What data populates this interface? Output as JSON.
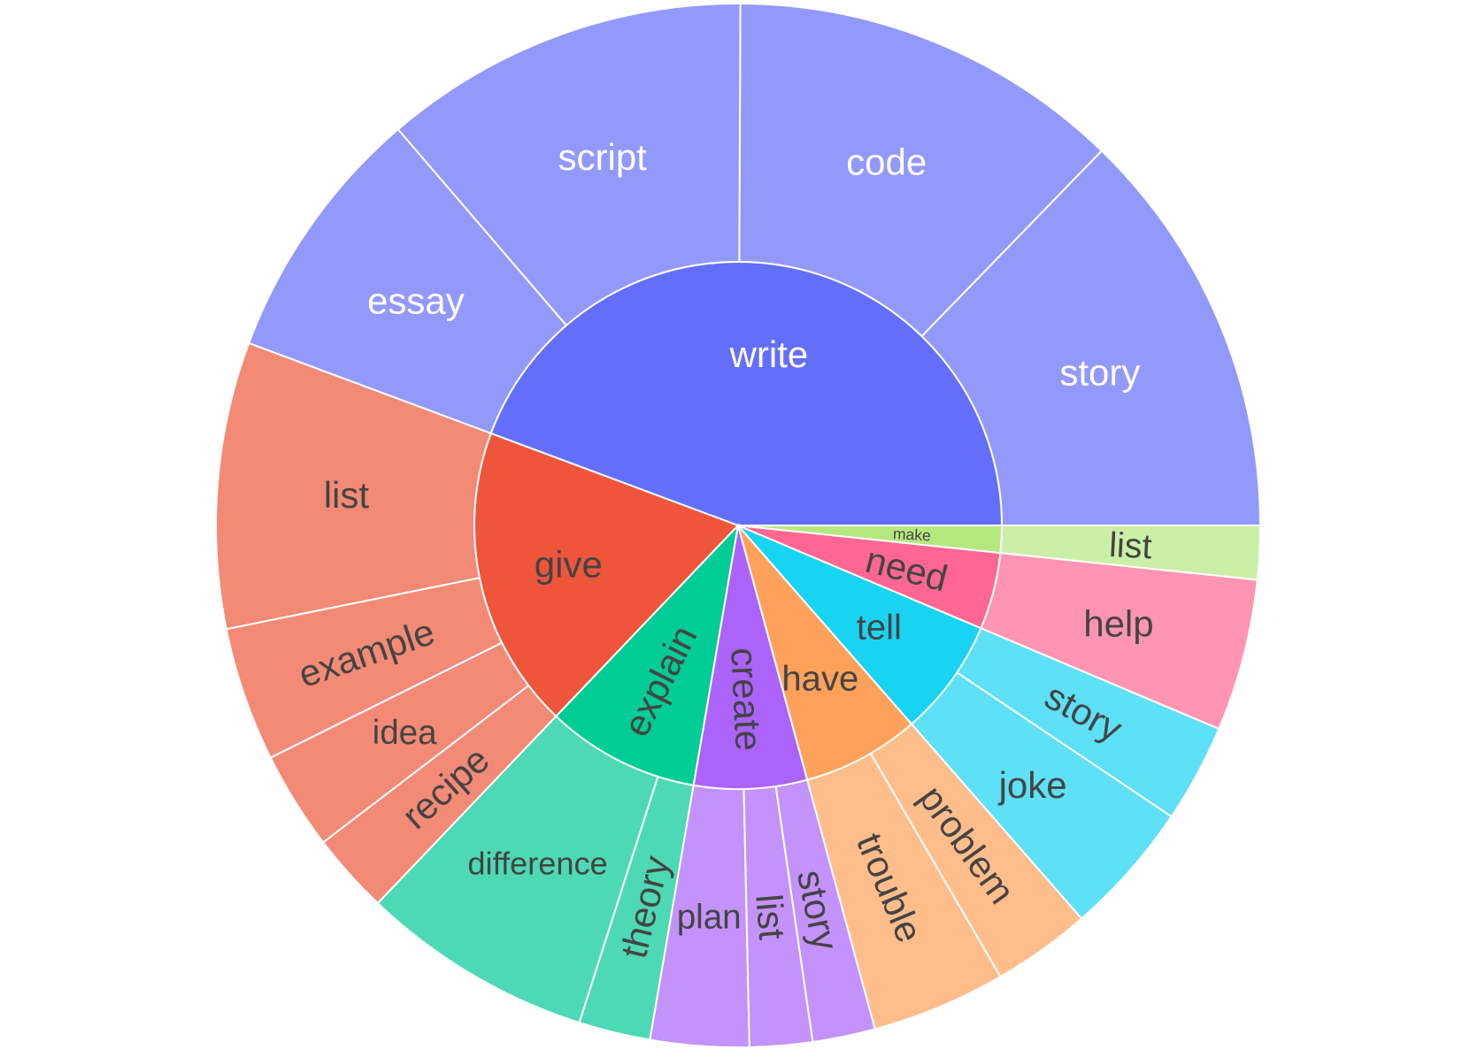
{
  "chart_data": {
    "type": "sunburst",
    "segments": [
      {
        "label": "write",
        "color": "#636efa",
        "child_color": "#9399fb",
        "label_color": "#ffffff",
        "children": [
          {
            "label": "story",
            "value": 46
          },
          {
            "label": "code",
            "value": 44
          },
          {
            "label": "script",
            "value": 41
          },
          {
            "label": "essay",
            "value": 29
          }
        ]
      },
      {
        "label": "give",
        "color": "#ef553b",
        "child_color": "#f38a76",
        "label_color": "#444444",
        "children": [
          {
            "label": "list",
            "value": 32
          },
          {
            "label": "example",
            "value": 15
          },
          {
            "label": "idea",
            "value": 11
          },
          {
            "label": "recipe",
            "value": 9
          }
        ]
      },
      {
        "label": "explain",
        "color": "#00cc96",
        "child_color": "#4dd9b6",
        "label_color": "#444444",
        "children": [
          {
            "label": "difference",
            "value": 26
          },
          {
            "label": "theory",
            "value": 8
          }
        ]
      },
      {
        "label": "create",
        "color": "#ab63fa",
        "child_color": "#c492fb",
        "label_color": "#444444",
        "children": [
          {
            "label": "plan",
            "value": 11
          },
          {
            "label": "list",
            "value": 7
          },
          {
            "label": "story",
            "value": 7
          }
        ]
      },
      {
        "label": "have",
        "color": "#ffa15a",
        "child_color": "#ffbd8b",
        "label_color": "#444444",
        "children": [
          {
            "label": "trouble",
            "value": 15
          },
          {
            "label": "problem",
            "value": 11
          }
        ]
      },
      {
        "label": "tell",
        "color": "#19d3f3",
        "child_color": "#5ee0f7",
        "label_color": "#444444",
        "children": [
          {
            "label": "joke",
            "value": 15
          },
          {
            "label": "story",
            "value": 11
          }
        ]
      },
      {
        "label": "need",
        "color": "#ff6692",
        "child_color": "#ff94b3",
        "label_color": "#444444",
        "children": [
          {
            "label": "help",
            "value": 17
          }
        ]
      },
      {
        "label": "make",
        "color": "#b6e880",
        "child_color": "#cbefa6",
        "label_color": "#444444",
        "children": [
          {
            "label": "list",
            "value": 6
          }
        ]
      }
    ]
  }
}
